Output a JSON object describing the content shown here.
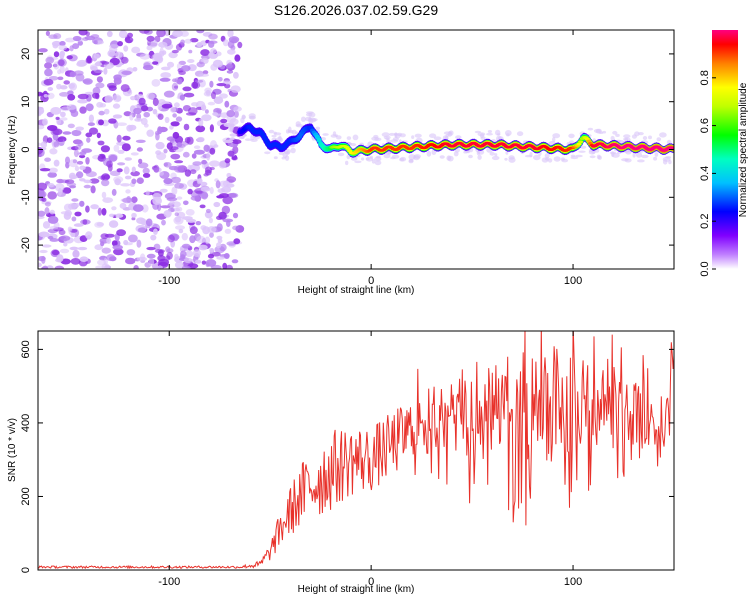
{
  "title": "S126.2026.037.02.59.G29",
  "chart_data": [
    {
      "type": "heatmap",
      "name": "spectrogram",
      "xlabel": "Height of straight line (km)",
      "ylabel": "Frequency (Hz)",
      "xlim": [
        -165,
        150
      ],
      "ylim": [
        -25,
        25
      ],
      "xticks": [
        -100,
        0,
        100
      ],
      "xtick_labels": [
        "-100",
        "0",
        "100"
      ],
      "yticks": [
        -20,
        -10,
        0,
        10,
        20
      ],
      "ytick_labels": [
        "-20",
        "-10",
        "0",
        "10",
        "20"
      ],
      "noise_region_x": [
        -165,
        -65
      ],
      "signal_ridge": {
        "x": [
          -65,
          -60,
          -55,
          -50,
          -45,
          -40,
          -35,
          -30,
          -25,
          -20,
          -15,
          -10,
          0,
          20,
          40,
          60,
          80,
          100,
          105,
          110,
          130,
          150
        ],
        "freq": [
          4,
          4.5,
          3.5,
          1,
          0.5,
          1.5,
          3,
          5,
          1,
          0,
          1,
          -0.5,
          0,
          0.5,
          1,
          1,
          0.5,
          0,
          2.5,
          1,
          0.5,
          0
        ],
        "amplitude": [
          0.25,
          0.3,
          0.3,
          0.3,
          0.3,
          0.3,
          0.35,
          0.3,
          0.5,
          0.6,
          0.65,
          0.7,
          0.85,
          0.85,
          0.9,
          0.9,
          0.9,
          0.85,
          0.6,
          0.9,
          0.95,
          1.0
        ]
      },
      "colorbar": {
        "label": "Normalized spectral amplitude",
        "range": [
          0,
          1
        ],
        "ticks": [
          "0.0",
          "0.2",
          "0.4",
          "0.6",
          "0.8"
        ],
        "tick_values": [
          0.0,
          0.2,
          0.4,
          0.6,
          0.8
        ]
      }
    },
    {
      "type": "line",
      "name": "snr",
      "xlabel": "Height of straight line (km)",
      "ylabel": "SNR (10 * v/v)",
      "xlim": [
        -165,
        150
      ],
      "ylim": [
        0,
        650
      ],
      "xticks": [
        -100,
        0,
        100
      ],
      "xtick_labels": [
        "-100",
        "0",
        "100"
      ],
      "yticks": [
        0,
        200,
        400,
        600
      ],
      "ytick_labels": [
        "0",
        "200",
        "400",
        "600"
      ],
      "color": "#e8312a",
      "envelope": {
        "x": [
          -165,
          -65,
          -55,
          -50,
          -45,
          -40,
          -35,
          -30,
          -25,
          -20,
          -10,
          0,
          10,
          20,
          30,
          40,
          50,
          60,
          70,
          80,
          90,
          100,
          110,
          120,
          130,
          140,
          145,
          150
        ],
        "mean": [
          8,
          8,
          15,
          50,
          110,
          160,
          200,
          230,
          250,
          270,
          300,
          300,
          340,
          380,
          410,
          420,
          400,
          430,
          450,
          440,
          430,
          450,
          440,
          470,
          440,
          400,
          380,
          560
        ],
        "spread": [
          3,
          3,
          10,
          25,
          50,
          70,
          90,
          100,
          110,
          110,
          100,
          90,
          90,
          90,
          90,
          100,
          120,
          140,
          150,
          150,
          140,
          140,
          120,
          110,
          100,
          90,
          90,
          60
        ]
      }
    }
  ]
}
